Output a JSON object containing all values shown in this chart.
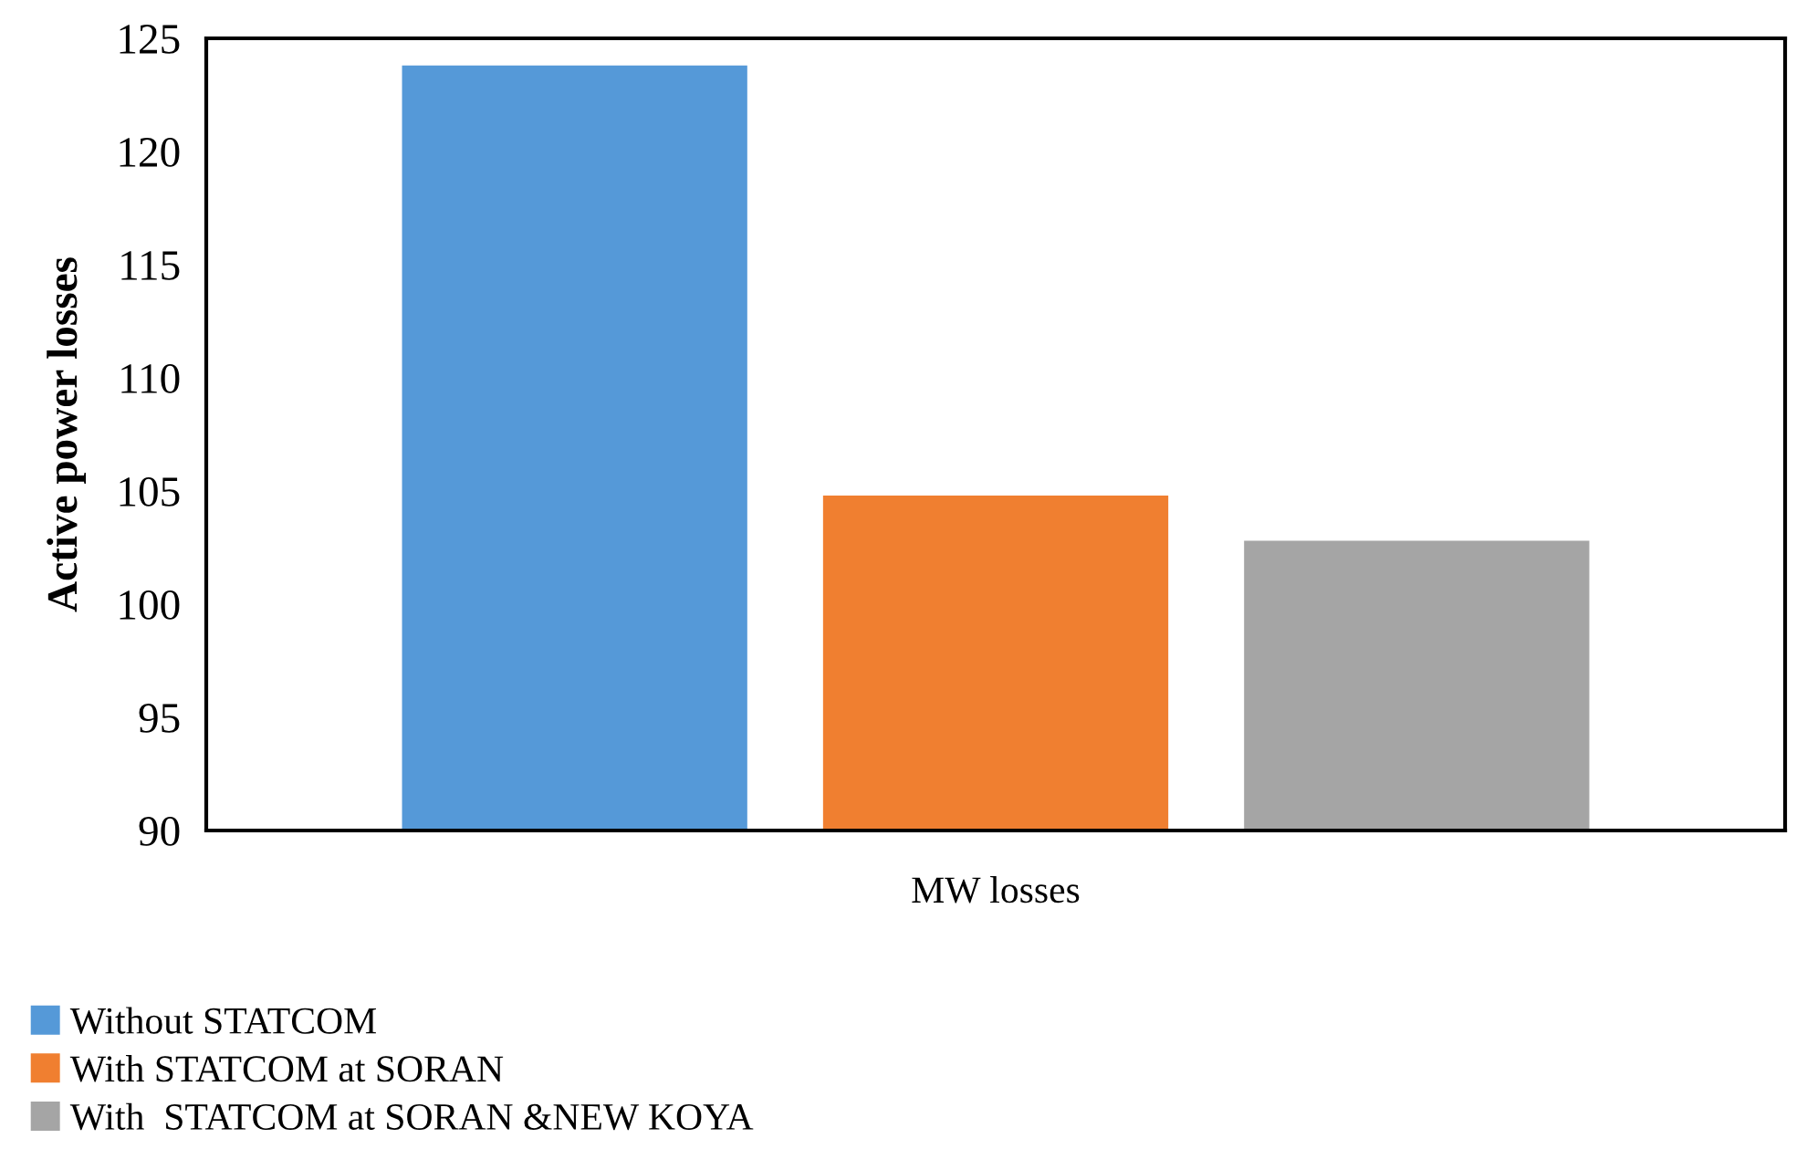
{
  "chart_data": {
    "type": "bar",
    "ylabel": "Active power losses",
    "categories": [
      "MW losses"
    ],
    "series": [
      {
        "name": "Without STATCOM",
        "color": "#5599d8",
        "values": [
          123.8
        ]
      },
      {
        "name": "With STATCOM at SORAN",
        "color": "#f07f30",
        "values": [
          104.8
        ]
      },
      {
        "name": "With  STATCOM at SORAN &NEW KOYA",
        "color": "#a5a5a5",
        "values": [
          102.8
        ]
      }
    ],
    "ylim": [
      90,
      125
    ],
    "yticks": [
      90,
      95,
      100,
      105,
      110,
      115,
      120,
      125
    ],
    "grid": false,
    "legend": "bottom left"
  }
}
